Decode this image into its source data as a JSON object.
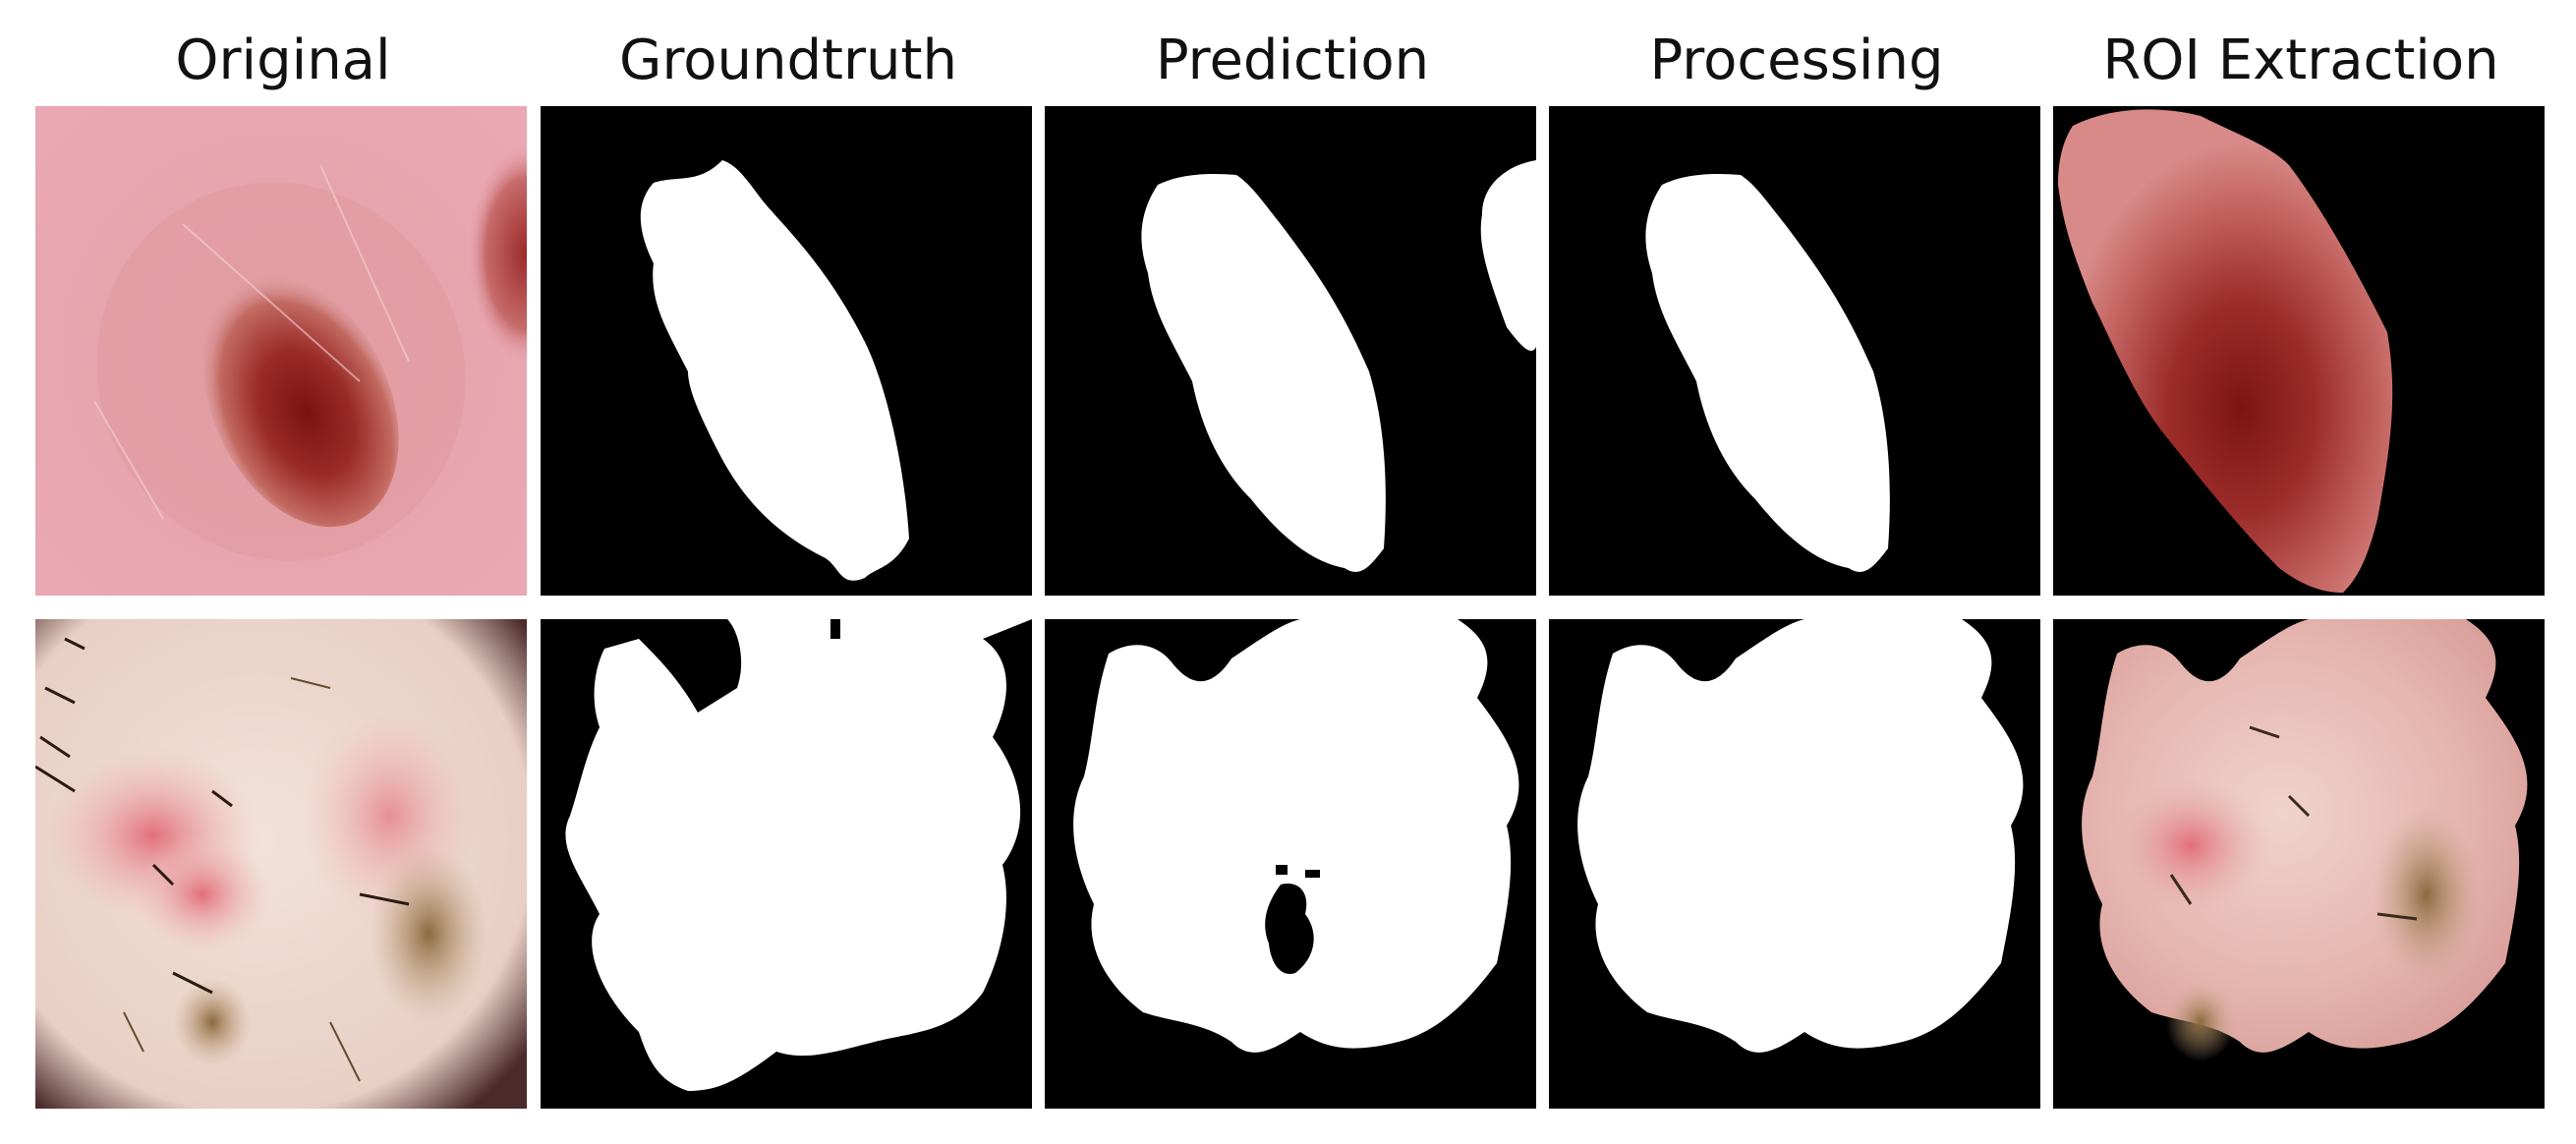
{
  "figure": {
    "columns": [
      {
        "title": "Original"
      },
      {
        "title": "Groundtruth"
      },
      {
        "title": "Prediction"
      },
      {
        "title": "Processing"
      },
      {
        "title": "ROI Extraction"
      }
    ],
    "rows": [
      {
        "cells": [
          "original-image",
          "groundtruth-mask",
          "prediction-mask",
          "processing-mask",
          "roi-extraction-image"
        ]
      },
      {
        "cells": [
          "original-image",
          "groundtruth-mask",
          "prediction-mask",
          "processing-mask",
          "roi-extraction-image"
        ]
      }
    ],
    "colors": {
      "mask_background": "#000000",
      "mask_foreground": "#ffffff",
      "skin_row1": "#e9a3ae",
      "lesion_row1": "#8a1e1e",
      "skin_row2": "#f0ddd2",
      "lesion_row2": "#d9838a"
    }
  }
}
